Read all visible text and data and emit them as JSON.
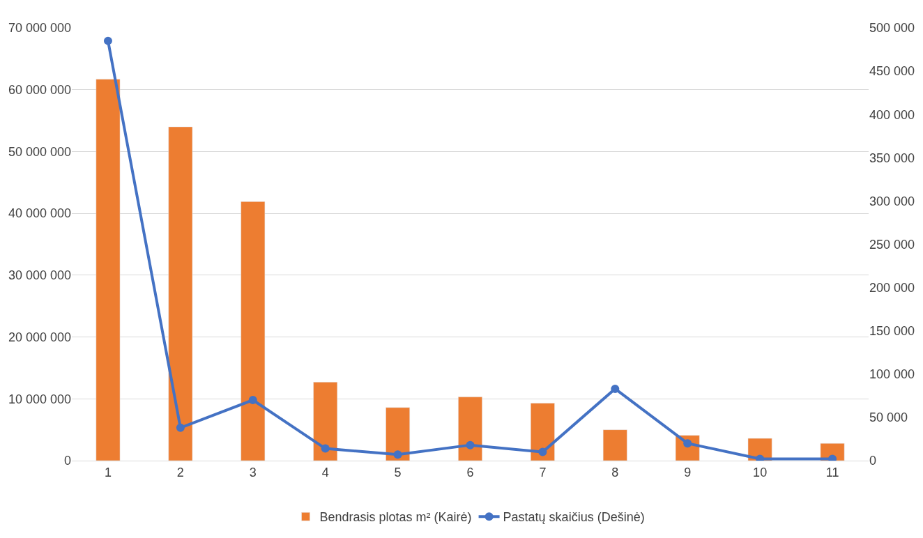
{
  "chart_data": {
    "type": "bar",
    "categories": [
      "1",
      "2",
      "3",
      "4",
      "5",
      "6",
      "7",
      "8",
      "9",
      "10",
      "11"
    ],
    "series": [
      {
        "name": "Bendrasis plotas m² (Kairė)",
        "color": "#ed7d31",
        "values": [
          61700000,
          54000000,
          41900000,
          12700000,
          8600000,
          10300000,
          9300000,
          5000000,
          4100000,
          3600000,
          2800000
        ]
      },
      {
        "name": "Pastatų skaičius (Dešinė)",
        "type": "line",
        "axis": "y2",
        "color": "#4472c4",
        "values": [
          485000,
          38000,
          70000,
          14000,
          7000,
          18000,
          10000,
          83000,
          20000,
          2000,
          2000
        ]
      }
    ],
    "ylim": [
      0,
      70000000
    ],
    "yticks": [
      {
        "value": 0,
        "label": "0"
      },
      {
        "value": 10000000,
        "label": "10 000 000"
      },
      {
        "value": 20000000,
        "label": "20 000 000"
      },
      {
        "value": 30000000,
        "label": "30 000 000"
      },
      {
        "value": 40000000,
        "label": "40 000 000"
      },
      {
        "value": 50000000,
        "label": "50 000 000"
      },
      {
        "value": 60000000,
        "label": "60 000 000"
      },
      {
        "value": 70000000,
        "label": "70 000 000"
      }
    ],
    "y2lim": [
      0,
      500000
    ],
    "y2ticks": [
      {
        "value": 0,
        "label": "0"
      },
      {
        "value": 50000,
        "label": "50 000"
      },
      {
        "value": 100000,
        "label": "100 000"
      },
      {
        "value": 150000,
        "label": "150 000"
      },
      {
        "value": 200000,
        "label": "200 000"
      },
      {
        "value": 250000,
        "label": "250 000"
      },
      {
        "value": 300000,
        "label": "300 000"
      },
      {
        "value": 350000,
        "label": "350 000"
      },
      {
        "value": 400000,
        "label": "400 000"
      },
      {
        "value": 450000,
        "label": "450 000"
      },
      {
        "value": 500000,
        "label": "500 000"
      }
    ],
    "grid": "y",
    "legend": "bottom",
    "marker": "circle",
    "line_style": "solid"
  }
}
